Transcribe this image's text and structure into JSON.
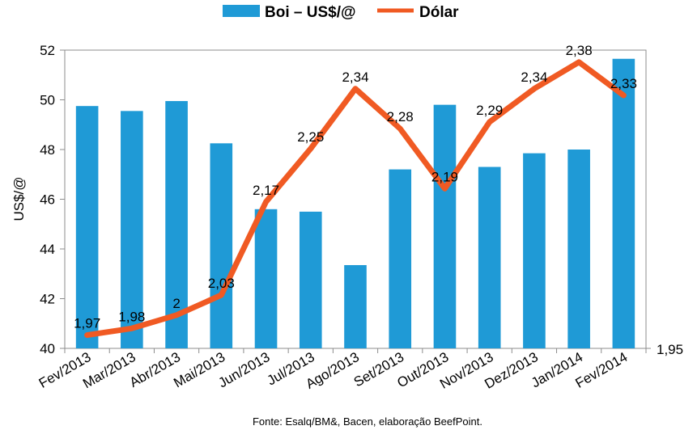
{
  "chart_data": {
    "type": "bar",
    "categories": [
      "Fev/2013",
      "Mar/2013",
      "Abr/2013",
      "Mai/2013",
      "Jun/2013",
      "Jul/2013",
      "Ago/2013",
      "Set/2013",
      "Out/2013",
      "Nov/2013",
      "Dez/2013",
      "Jan/2014",
      "Fev/2014"
    ],
    "series": [
      {
        "name": "Boi – US$/@",
        "kind": "bar",
        "axis": "left",
        "color": "#1f9ad6",
        "values": [
          49.75,
          49.55,
          49.95,
          48.25,
          45.6,
          45.5,
          43.35,
          47.2,
          49.8,
          47.3,
          47.85,
          48.0,
          51.65
        ]
      },
      {
        "name": "Dólar",
        "kind": "line",
        "axis": "right",
        "color": "#f05a23",
        "values": [
          1.97,
          1.98,
          2.0,
          2.03,
          2.17,
          2.25,
          2.34,
          2.28,
          2.19,
          2.29,
          2.34,
          2.38,
          2.33
        ],
        "labels": [
          "1,97",
          "1,98",
          "2",
          "2,03",
          "2,17",
          "2,25",
          "2,34",
          "2,28",
          "2,19",
          "2,29",
          "2,34",
          "2,38",
          "2,33"
        ]
      }
    ],
    "ylabel": "US$/@",
    "ylim": [
      40,
      52
    ],
    "yticks": [
      "40",
      "42",
      "44",
      "46",
      "48",
      "50",
      "52"
    ],
    "y2lim": [
      1.95,
      2.398
    ],
    "y2ticks": [
      "1,95"
    ],
    "legend": "top",
    "grid": false,
    "source": "Fonte: Esalq/BM&, Bacen, elaboração BeefPoint."
  }
}
